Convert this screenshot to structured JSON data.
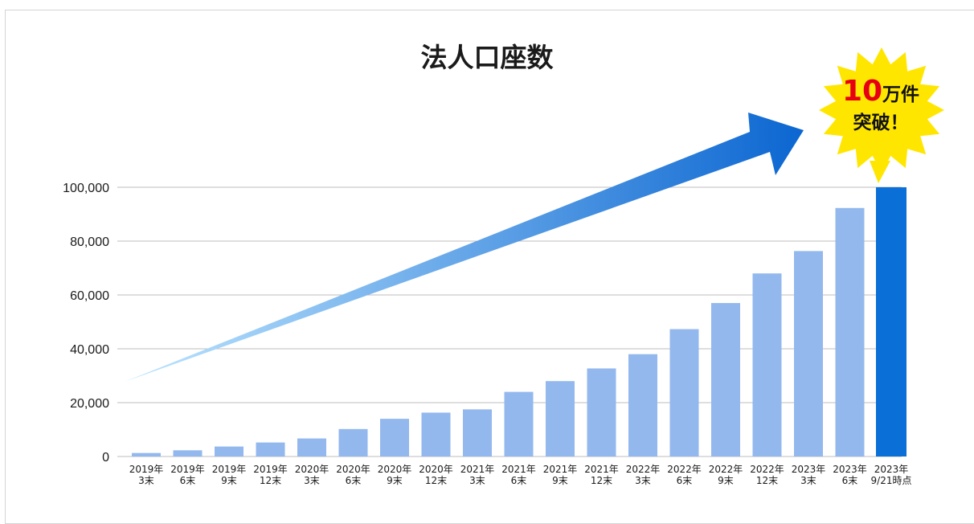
{
  "chart_data": {
    "type": "bar",
    "title": "法人口座数",
    "categories": [
      [
        "2019年",
        "3末"
      ],
      [
        "2019年",
        "6末"
      ],
      [
        "2019年",
        "9末"
      ],
      [
        "2019年",
        "12末"
      ],
      [
        "2020年",
        "3末"
      ],
      [
        "2020年",
        "6末"
      ],
      [
        "2020年",
        "9末"
      ],
      [
        "2020年",
        "12末"
      ],
      [
        "2021年",
        "3末"
      ],
      [
        "2021年",
        "6末"
      ],
      [
        "2021年",
        "9末"
      ],
      [
        "2021年",
        "12末"
      ],
      [
        "2022年",
        "3末"
      ],
      [
        "2022年",
        "6末"
      ],
      [
        "2022年",
        "9末"
      ],
      [
        "2022年",
        "12末"
      ],
      [
        "2023年",
        "3末"
      ],
      [
        "2023年",
        "6末"
      ],
      [
        "2023年",
        "9/21時点"
      ]
    ],
    "values": [
      1300,
      2300,
      3700,
      5200,
      6700,
      10200,
      14000,
      16300,
      17500,
      24000,
      28000,
      32700,
      38000,
      47300,
      57000,
      68000,
      76300,
      92300,
      100000
    ],
    "ylim": [
      0,
      100000
    ],
    "yticks": [
      0,
      20000,
      40000,
      60000,
      80000,
      100000
    ],
    "ytick_labels": [
      "0",
      "20,000",
      "40,000",
      "60,000",
      "80,000",
      "100,000"
    ],
    "grid": true,
    "xlabel": "",
    "ylabel": "",
    "colors": {
      "bar": "#93b8ee",
      "highlight_bar": "#0a6fd6",
      "grid": "#bdbdbd",
      "arrow_start": "#bfe6ff",
      "arrow_end": "#0b66d1",
      "burst": "#ffe600",
      "burst_number": "#e60012",
      "text": "#1a1a1a"
    },
    "highlight_index": 18,
    "trend_arrow": true,
    "callout": {
      "number": "10",
      "line1_rest": "万件",
      "line2": "突破！"
    }
  }
}
